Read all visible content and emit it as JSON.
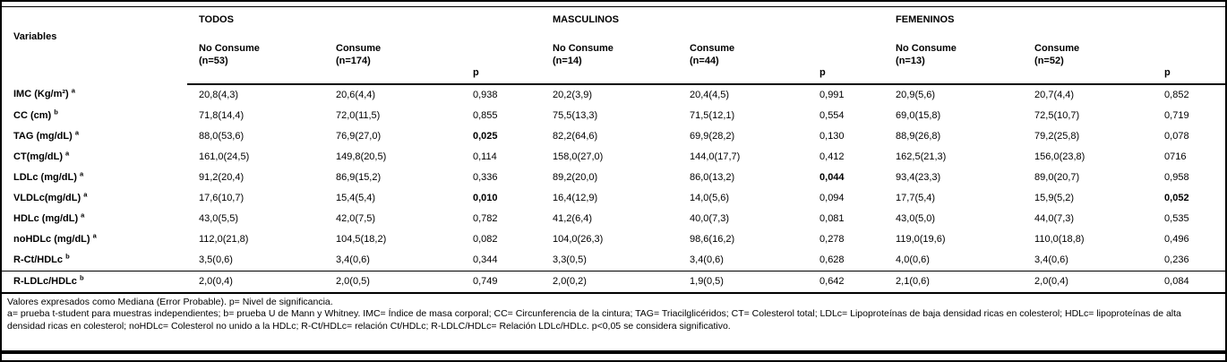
{
  "table": {
    "variables_label": "Variables",
    "groups": [
      {
        "title": "TODOS",
        "columns": [
          {
            "line1": "No Consume",
            "line2": "(n=53)"
          },
          {
            "line1": "Consume",
            "line2": "(n=174)"
          },
          {
            "line1": "p",
            "line2": ""
          }
        ]
      },
      {
        "title": "MASCULINOS",
        "columns": [
          {
            "line1": "No Consume",
            "line2": "(n=14)"
          },
          {
            "line1": "Consume",
            "line2": "(n=44)"
          },
          {
            "line1": "p",
            "line2": ""
          }
        ]
      },
      {
        "title": "FEMENINOS",
        "columns": [
          {
            "line1": "No Consume",
            "line2": "(n=13)"
          },
          {
            "line1": "Consume",
            "line2": "(n=52)"
          },
          {
            "line1": "p",
            "line2": ""
          }
        ]
      }
    ],
    "rows": [
      {
        "variable": "IMC (Kg/m²)",
        "sup": "a",
        "values": [
          "20,8(4,3)",
          "20,6(4,4)",
          "0,938",
          "20,2(3,9)",
          "20,4(4,5)",
          "0,991",
          "20,9(5,6)",
          "20,7(4,4)",
          "0,852"
        ],
        "bold_indices": []
      },
      {
        "variable": "CC (cm)",
        "sup": "b",
        "values": [
          "71,8(14,4)",
          "72,0(11,5)",
          "0,855",
          "75,5(13,3)",
          "71,5(12,1)",
          "0,554",
          "69,0(15,8)",
          "72,5(10,7)",
          "0,719"
        ],
        "bold_indices": []
      },
      {
        "variable": "TAG (mg/dL)",
        "sup": "a",
        "values": [
          "88,0(53,6)",
          "76,9(27,0)",
          "0,025",
          "82,2(64,6)",
          "69,9(28,2)",
          "0,130",
          "88,9(26,8)",
          "79,2(25,8)",
          "0,078"
        ],
        "bold_indices": [
          2
        ]
      },
      {
        "variable": "CT(mg/dL)",
        "sup": "a",
        "values": [
          "161,0(24,5)",
          "149,8(20,5)",
          "0,114",
          "158,0(27,0)",
          "144,0(17,7)",
          "0,412",
          "162,5(21,3)",
          "156,0(23,8)",
          "0716"
        ],
        "bold_indices": []
      },
      {
        "variable": "LDLc (mg/dL)",
        "sup": "a",
        "values": [
          "91,2(20,4)",
          "86,9(15,2)",
          "0,336",
          "89,2(20,0)",
          "86,0(13,2)",
          "0,044",
          "93,4(23,3)",
          "89,0(20,7)",
          "0,958"
        ],
        "bold_indices": [
          5
        ]
      },
      {
        "variable": "VLDLc(mg/dL)",
        "sup": "a",
        "values": [
          "17,6(10,7)",
          "15,4(5,4)",
          "0,010",
          "16,4(12,9)",
          "14,0(5,6)",
          "0,094",
          "17,7(5,4)",
          "15,9(5,2)",
          "0,052"
        ],
        "bold_indices": [
          2,
          8
        ]
      },
      {
        "variable": "HDLc (mg/dL)",
        "sup": "a",
        "values": [
          "43,0(5,5)",
          "42,0(7,5)",
          "0,782",
          "41,2(6,4)",
          "40,0(7,3)",
          "0,081",
          "43,0(5,0)",
          "44,0(7,3)",
          "0,535"
        ],
        "bold_indices": []
      },
      {
        "variable": "noHDLc (mg/dL)",
        "sup": "a",
        "values": [
          "112,0(21,8)",
          "104,5(18,2)",
          "0,082",
          "104,0(26,3)",
          "98,6(16,2)",
          "0,278",
          "119,0(19,6)",
          "110,0(18,8)",
          "0,496"
        ],
        "bold_indices": []
      },
      {
        "variable": "R-Ct/HDLc",
        "sup": "b",
        "values": [
          "3,5(0,6)",
          "3,4(0,6)",
          "0,344",
          "3,3(0,5)",
          "3,4(0,6)",
          "0,628",
          "4,0(0,6)",
          "3,4(0,6)",
          "0,236"
        ],
        "bold_indices": []
      },
      {
        "variable": "R-LDLc/HDLc",
        "sup": "b",
        "values": [
          "2,0(0,4)",
          "2,0(0,5)",
          "0,749",
          "2,0(0,2)",
          "1,9(0,5)",
          "0,642",
          "2,1(0,6)",
          "2,0(0,4)",
          "0,084"
        ],
        "bold_indices": []
      }
    ]
  },
  "footnotes": [
    "Valores expresados como Mediana (Error Probable). p= Nivel de significancia.",
    "a= prueba t-student para muestras independientes; b= prueba U de Mann y Whitney. IMC= Índice de masa corporal; CC= Circunferencia de la cintura; TAG= Triacilglicéridos; CT= Colesterol total; LDLc= Lipoproteínas de baja densidad ricas en colesterol; HDLc= lipoproteínas de alta densidad ricas en colesterol; noHDLc= Colesterol no unido a la HDLc; R-Ct/HDLc= relación Ct/HDLc; R-LDLC/HDLc= Relación LDLc/HDLc. p<0,05 se considera significativo."
  ]
}
